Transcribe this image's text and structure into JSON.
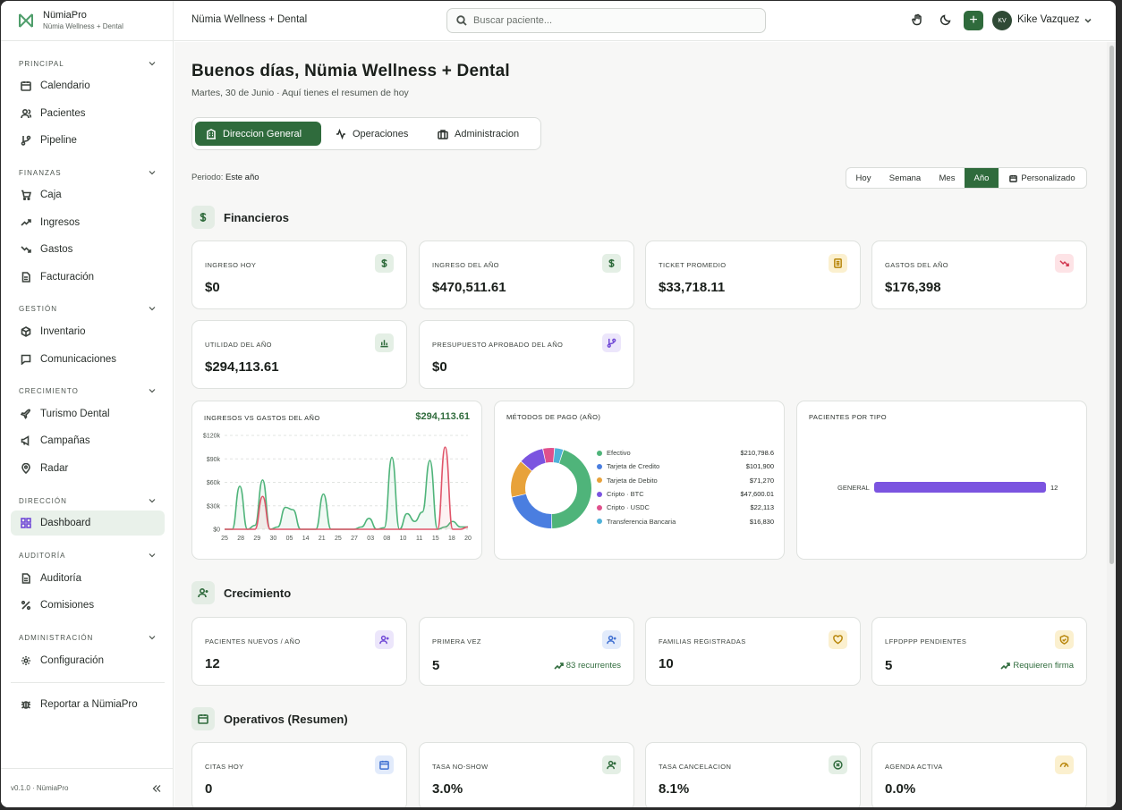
{
  "brand": {
    "name": "NümiaPro",
    "subtitle": "Nümia Wellness + Dental"
  },
  "sidebar": {
    "sections": [
      {
        "label": "PRINCIPAL",
        "items": [
          "Calendario",
          "Pacientes",
          "Pipeline"
        ]
      },
      {
        "label": "FINANZAS",
        "items": [
          "Caja",
          "Ingresos",
          "Gastos",
          "Facturación"
        ]
      },
      {
        "label": "GESTIÓN",
        "items": [
          "Inventario",
          "Comunicaciones"
        ]
      },
      {
        "label": "CRECIMIENTO",
        "items": [
          "Turismo Dental",
          "Campañas",
          "Radar"
        ]
      },
      {
        "label": "DIRECCIÓN",
        "items": [
          "Dashboard"
        ]
      },
      {
        "label": "AUDITORÍA",
        "items": [
          "Auditoría",
          "Comisiones"
        ]
      },
      {
        "label": "ADMINISTRACIÓN",
        "items": [
          "Configuración"
        ]
      }
    ],
    "report": "Reportar a NümiaPro",
    "version": "v0.1.0 · NümiaPro"
  },
  "topbar": {
    "org": "Nümia Wellness + Dental",
    "search_placeholder": "Buscar paciente...",
    "avatar": "KV",
    "user": "Kike Vazquez",
    "plus": "+"
  },
  "header": {
    "title": "Buenos días, Nümia Wellness + Dental",
    "subtitle": "Martes, 30 de Junio · Aquí tienes el resumen de hoy"
  },
  "tabs": [
    "Direccion General",
    "Operaciones",
    "Administracion"
  ],
  "periodo": {
    "label": "Periodo:",
    "value": "Este año"
  },
  "range": [
    "Hoy",
    "Semana",
    "Mes",
    "Año",
    "Personalizado"
  ],
  "sections": {
    "fin": "Financieros",
    "crec": "Crecimiento",
    "oper": "Operativos (Resumen)"
  },
  "fin_cards": [
    {
      "label": "INGRESO HOY",
      "value": "$0"
    },
    {
      "label": "INGRESO DEL AÑO",
      "value": "$470,511.61"
    },
    {
      "label": "TICKET PROMEDIO",
      "value": "$33,718.11"
    },
    {
      "label": "GASTOS DEL AÑO",
      "value": "$176,398"
    },
    {
      "label": "UTILIDAD DEL AÑO",
      "value": "$294,113.61"
    },
    {
      "label": "PRESUPUESTO APROBADO DEL AÑO",
      "value": "$0"
    }
  ],
  "crec_cards": [
    {
      "label": "PACIENTES NUEVOS / AÑO",
      "value": "12"
    },
    {
      "label": "PRIMERA VEZ",
      "value": "5",
      "note": "83 recurrentes"
    },
    {
      "label": "FAMILIAS REGISTRADAS",
      "value": "10"
    },
    {
      "label": "LFPDPPP PENDIENTES",
      "value": "5",
      "note": "Requieren firma"
    }
  ],
  "oper_cards": [
    {
      "label": "CITAS HOY",
      "value": "0"
    },
    {
      "label": "TASA NO-SHOW",
      "value": "3.0%"
    },
    {
      "label": "TASA CANCELACION",
      "value": "8.1%"
    },
    {
      "label": "AGENDA ACTIVA",
      "value": "0.0%"
    }
  ],
  "chart_data": [
    {
      "type": "line",
      "title": "INGRESOS VS GASTOS DEL AÑO",
      "total": "$294,113.61",
      "ylim": [
        0,
        120000
      ],
      "ytick_labels": [
        "$0",
        "$30k",
        "$60k",
        "$90k",
        "$120k"
      ],
      "x_ticks": [
        "25",
        "28",
        "29",
        "30",
        "05",
        "14",
        "21",
        "25",
        "27",
        "03",
        "08",
        "10",
        "11",
        "15",
        "18",
        "20"
      ],
      "grid": true,
      "series": [
        {
          "color": "#4fb47a",
          "values": [
            0,
            0,
            55000,
            0,
            5000,
            63000,
            0,
            3000,
            28000,
            25000,
            0,
            0,
            0,
            45000,
            0,
            0,
            0,
            0,
            3000,
            14000,
            0,
            2000,
            92000,
            0,
            20000,
            10000,
            22000,
            88000,
            0,
            3000,
            10000,
            3000,
            3000
          ]
        },
        {
          "color": "#e0556a",
          "values": [
            0,
            0,
            0,
            0,
            0,
            42000,
            0,
            0,
            0,
            0,
            0,
            0,
            0,
            0,
            0,
            0,
            0,
            0,
            0,
            0,
            0,
            0,
            0,
            0,
            0,
            0,
            0,
            0,
            0,
            105000,
            0,
            0,
            3000
          ]
        }
      ]
    },
    {
      "type": "pie",
      "title": "MÉTODOS DE PAGO (AÑO)",
      "categories": [
        "Efectivo",
        "Tarjeta de Credito",
        "Tarjeta de Debito",
        "Cripto · BTC",
        "Cripto · USDC",
        "Transferencia Bancaria"
      ],
      "values": [
        210798.6,
        101900,
        71270,
        47600.01,
        22113,
        16830
      ],
      "labels": [
        "$210,798.6",
        "$101,900",
        "$71,270",
        "$47,600.01",
        "$22,113",
        "$16,830"
      ],
      "colors": [
        "#4fb47a",
        "#4a7ee0",
        "#e8a23a",
        "#7b54e0",
        "#e0508c",
        "#4fb2d9"
      ]
    },
    {
      "type": "bar",
      "title": "PACIENTES POR TIPO",
      "categories": [
        "GENERAL"
      ],
      "values": [
        12
      ],
      "color": "#7b54e0"
    }
  ],
  "colors": {
    "accent": "#2f6b3c"
  }
}
